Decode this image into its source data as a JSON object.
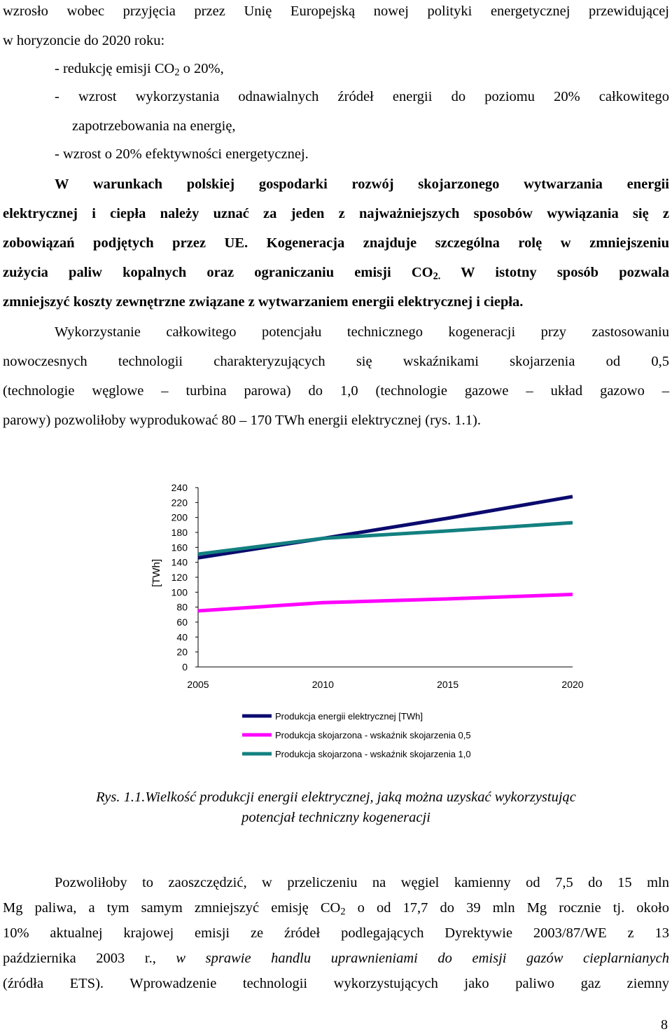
{
  "text": {
    "l1": "wzrosło wobec przyjęcia przez Unię Europejską nowej polityki energetycznej przewidującej",
    "l2": "w horyzoncie do 2020 roku:",
    "l3a": "- redukcję emisji CO",
    "l3sub": "2",
    "l3b": " o 20%,",
    "l4": "- wzrost wykorzystania odnawialnych źródeł energii do poziomu 20% całkowitego",
    "l5": "zapotrzebowania na energię,",
    "l6": "- wzrost o 20% efektywności energetycznej.",
    "b1": "W warunkach polskiej gospodarki rozwój skojarzonego wytwarzania energii",
    "b2": "elektrycznej i ciepła należy uznać za jeden z najważniejszych sposobów wywiązania się z",
    "b3": "zobowiązań podjętych przez UE. Kogeneracja znajduje szczególna rolę w zmniejszeniu",
    "b4a": "zużycia paliw kopalnych oraz ograniczaniu emisji CO",
    "b4sub": "2.",
    "b4b": " W istotny sposób pozwala",
    "b5": "zmniejszyć koszty zewnętrzne związane z wytwarzaniem energii elektrycznej i ciepła.",
    "p1": "Wykorzystanie całkowitego potencjału technicznego kogeneracji przy zastosowaniu",
    "p2": "nowoczesnych technologii charakteryzujących się wskaźnikami skojarzenia od 0,5",
    "p3": "(technologie węglowe – turbina parowa) do 1,0 (technologie gazowe – układ gazowo –",
    "p4": "parowy) pozwoliłoby wyprodukować 80 – 170 TWh energii elektrycznej (rys. 1.1).",
    "cap1": "Rys. 1.1.Wielkość produkcji energii elektrycznej, jaką można uzyskać wykorzystując",
    "cap2": "potencjał techniczny kogeneracji",
    "q1": "Pozwoliłoby to zaoszczędzić, w przeliczeniu na węgiel kamienny od 7,5 do 15 mln",
    "q2a": "Mg paliwa, a tym samym zmniejszyć emisję CO",
    "q2sub": "2",
    "q2b": " o od 17,7 do 39 mln Mg rocznie tj. około",
    "q3": "10% aktualnej krajowej emisji ze źródeł podlegających Dyrektywie 2003/87/WE z 13",
    "q4a": "października 2003 r., ",
    "q4b": "w sprawie handlu uprawnieniami do emisji gazów cieplarnianych",
    "q5": "(źródła ETS). Wprowadzenie technologii wykorzystujących jako paliwo gaz ziemny",
    "page_number": "8"
  },
  "chart_data": {
    "type": "line",
    "ylabel": "[TWh]",
    "xlabel": "",
    "x": [
      2005,
      2010,
      2015,
      2020
    ],
    "xlim": [
      2005,
      2020
    ],
    "ylim": [
      0,
      240
    ],
    "yticks": [
      0,
      20,
      40,
      60,
      80,
      100,
      120,
      140,
      160,
      180,
      200,
      220,
      240
    ],
    "xticks": [
      "2005",
      "2010",
      "2015",
      "2020"
    ],
    "grid": false,
    "legend_position": "bottom",
    "series": [
      {
        "name": "Produkcja energii elektrycznej  [TWh]",
        "color": "#0a0a6e",
        "values": [
          146,
          172,
          199,
          228
        ]
      },
      {
        "name": "Produkcja skojarzona - wskaźnik skojarzenia 0,5",
        "color": "#ff00ff",
        "values": [
          75,
          86,
          91,
          97
        ]
      },
      {
        "name": "Produkcja skojarzona - wskaźnik skojarzenia 1,0",
        "color": "#138080",
        "values": [
          151,
          172,
          182,
          193
        ]
      }
    ]
  }
}
